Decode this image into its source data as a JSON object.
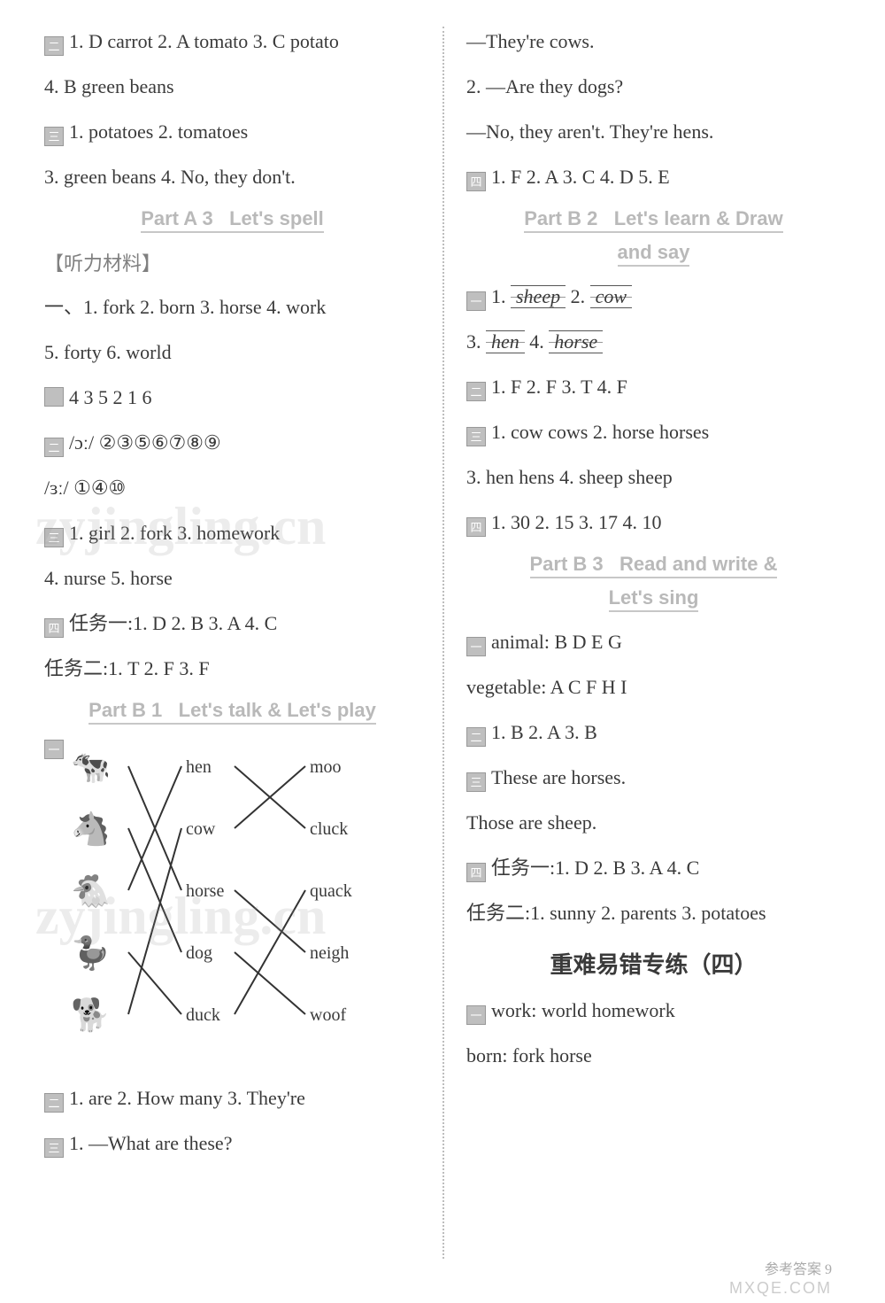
{
  "left": {
    "l1": "1. D carrot   2. A tomato   3. C potato",
    "l2": "4. B green beans",
    "l3": "1. potatoes   2. tomatoes",
    "l4": "3. green beans   4. No, they don't.",
    "h1a": "Part A 3",
    "h1b": "Let's spell",
    "listen_label": "【听力材料】",
    "l5": "一、1. fork   2. born   3. horse   4. work",
    "l6": "5. forty   6. world",
    "l7": "4   3   5   2   1   6",
    "l8_pre": "/ɔː/ ",
    "l8_nums": [
      "②",
      "③",
      "⑤",
      "⑥",
      "⑦",
      "⑧",
      "⑨"
    ],
    "l9_pre": "/ɜː/ ",
    "l9_nums": [
      "①",
      "④",
      "⑩"
    ],
    "l10": "1. girl   2. fork   3. homework",
    "l11": "4. nurse   5. horse",
    "l12": "任务一:1. D   2. B   3. A   4. C",
    "l13": "任务二:1. T   2. F   3. F",
    "h2a": "Part B 1",
    "h2b": "Let's talk & Let's play",
    "match": {
      "animals": [
        "cow",
        "horse",
        "hen",
        "duck",
        "dog"
      ],
      "colA": [
        "hen",
        "cow",
        "horse",
        "dog",
        "duck"
      ],
      "colB": [
        "moo",
        "cluck",
        "quack",
        "neigh",
        "woof"
      ],
      "icon_emoji": [
        "🐄",
        "🐴",
        "🐔",
        "🦆",
        "🐕"
      ],
      "edgesA": [
        [
          0,
          2
        ],
        [
          1,
          3
        ],
        [
          2,
          0
        ],
        [
          3,
          4
        ],
        [
          4,
          1
        ]
      ],
      "edgesB": [
        [
          0,
          1
        ],
        [
          1,
          0
        ],
        [
          2,
          3
        ],
        [
          3,
          4
        ],
        [
          4,
          2
        ]
      ]
    },
    "l14": "1. are   2. How many   3. They're",
    "l15": "1. —What are these?"
  },
  "right": {
    "r1": "—They're cows.",
    "r2": "2. —Are they dogs?",
    "r3": "—No, they aren't. They're hens.",
    "r4": "1. F   2. A   3. C   4. D   5. E",
    "h3a": "Part B 2",
    "h3b": "Let's learn & Draw",
    "h3c": "and say",
    "r5a": "1. ",
    "r5a_w": "sheep",
    "r5b": "   2. ",
    "r5b_w": "cow",
    "r6a": "3. ",
    "r6a_w": "hen",
    "r6b": "   4. ",
    "r6b_w": "horse",
    "r7": "1. F   2. F   3. T   4. F",
    "r8": "1. cow   cows   2. horse   horses",
    "r9": "3. hen   hens   4. sheep   sheep",
    "r10": "1.   30   2.   15   3.   17   4.   10",
    "h4a": "Part B 3",
    "h4b": "Read and write &",
    "h4c": "Let's sing",
    "r11": "animal:  B   D   E   G",
    "r12": "vegetable:  A   C   F   H   I",
    "r13": "1. B   2. A   3. B",
    "r14": "These are horses.",
    "r15": "Those are sheep.",
    "r16": "任务一:1. D   2. B   3. A   4. C",
    "r17": "任务二:1. sunny   2. parents   3. potatoes",
    "big": "重难易错专练（四）",
    "r18": "work: world   homework",
    "r19": "born: fork   horse"
  },
  "watermarks": {
    "w1": "zyjingling.cn",
    "w2": "zyjingling.cn"
  },
  "footer": {
    "text": "参考答案            9",
    "mxqe": "MXQE.COM"
  },
  "boxlabels": {
    "two": "二",
    "three": "三",
    "four": "四",
    "one": "一"
  },
  "colors": {
    "text": "#3a3a3a",
    "heading": "#b9b9b9",
    "divider": "#bdbdbd",
    "wm": "rgba(150,150,150,0.18)"
  }
}
